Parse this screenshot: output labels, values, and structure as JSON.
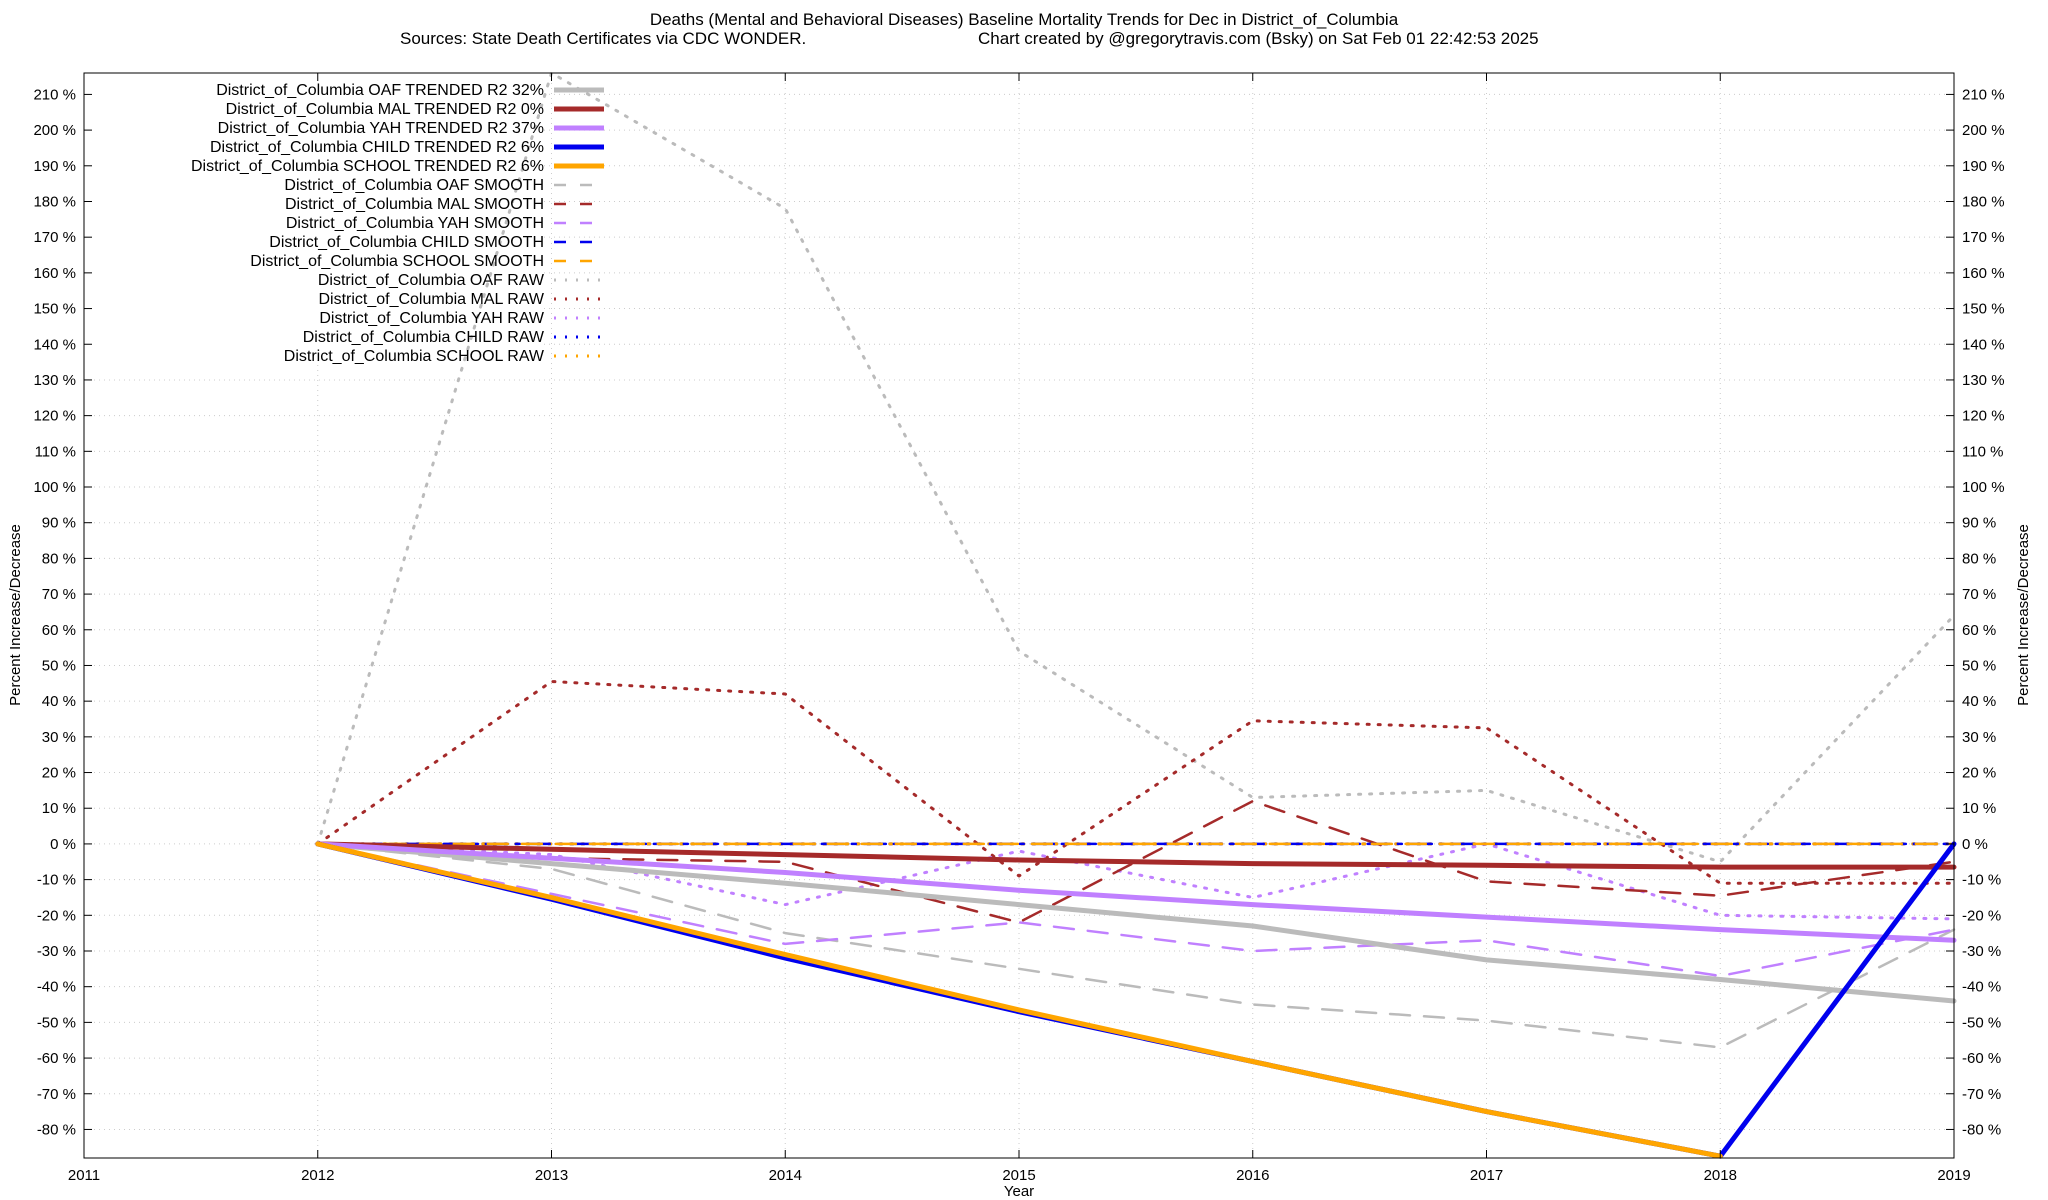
{
  "chart_data": {
    "type": "line",
    "title_line1": "Deaths (Mental and Behavioral Diseases)  Baseline Mortality Trends for Dec in District_of_Columbia",
    "title_line2_left": "Sources: State Death Certificates via CDC WONDER.",
    "title_line2_right": "Chart created by @gregorytravis.com (Bsky) on Sat Feb 01 22:42:53 2025",
    "xlabel": "Year",
    "ylabel": "Percent Increase/Decrease",
    "xlim": [
      2011,
      2019
    ],
    "ylim": [
      -88,
      216
    ],
    "x_ticks": [
      2011,
      2012,
      2013,
      2014,
      2015,
      2016,
      2017,
      2018,
      2019
    ],
    "x_tick_labels": [
      "2011",
      "2012",
      "2013",
      "2014",
      "2015",
      "2016",
      "2017",
      "2018",
      "2019"
    ],
    "y_ticks": [
      -80,
      -70,
      -60,
      -50,
      -40,
      -30,
      -20,
      -10,
      0,
      10,
      20,
      30,
      40,
      50,
      60,
      70,
      80,
      90,
      100,
      110,
      120,
      130,
      140,
      150,
      160,
      170,
      180,
      190,
      200,
      210
    ],
    "y_tick_labels": [
      "-80 %",
      "-70 %",
      "-60 %",
      "-50 %",
      "-40 %",
      "-30 %",
      "-20 %",
      "-10 %",
      "0 %",
      "10 %",
      "20 %",
      "30 %",
      "40 %",
      "50 %",
      "60 %",
      "70 %",
      "80 %",
      "90 %",
      "100 %",
      "110 %",
      "120 %",
      "130 %",
      "140 %",
      "150 %",
      "160 %",
      "170 %",
      "180 %",
      "190 %",
      "200 %",
      "210 %"
    ],
    "grid": true,
    "legend_position": "top-left",
    "series": [
      {
        "name": "District_of_Columbia OAF TRENDED R2  32%",
        "style": "trend",
        "color": "#bbbbbb",
        "x": [
          2012,
          2013,
          2014,
          2015,
          2016,
          2017,
          2018,
          2019
        ],
        "values": [
          0,
          -5.5,
          -11,
          -17,
          -23,
          -32.5,
          -38,
          -44
        ]
      },
      {
        "name": "District_of_Columbia MAL TRENDED R2   0%",
        "style": "trend",
        "color": "#a52a2a",
        "x": [
          2012,
          2013,
          2014,
          2015,
          2016,
          2017,
          2018,
          2019
        ],
        "values": [
          0,
          -1.5,
          -3,
          -4.5,
          -5.5,
          -6,
          -6.5,
          -6.5
        ]
      },
      {
        "name": "District_of_Columbia YAH TRENDED R2  37%",
        "style": "trend",
        "color": "#c080ff",
        "x": [
          2012,
          2013,
          2014,
          2015,
          2016,
          2017,
          2018,
          2019
        ],
        "values": [
          0,
          -4,
          -8,
          -13,
          -17,
          -20.5,
          -24,
          -27
        ]
      },
      {
        "name": "District_of_Columbia CHILD TRENDED R2   6%",
        "style": "trend",
        "color": "#0000ee",
        "x": [
          2012,
          2013,
          2014,
          2015,
          2016,
          2017,
          2018,
          2019
        ],
        "values": [
          0,
          -15.5,
          -32,
          -47,
          -61,
          -75,
          -87.5,
          0
        ]
      },
      {
        "name": "District_of_Columbia SCHOOL TRENDED R2   6%",
        "style": "trend",
        "color": "#ffa500",
        "x": [
          2012,
          2013,
          2014,
          2015,
          2016,
          2017,
          2018
        ],
        "values": [
          0,
          -15,
          -31,
          -46.5,
          -61,
          -75,
          -87.5
        ]
      },
      {
        "name": "District_of_Columbia OAF SMOOTH",
        "style": "smooth",
        "color": "#bbbbbb",
        "x": [
          2012,
          2013,
          2014,
          2015,
          2016,
          2017,
          2018,
          2019
        ],
        "values": [
          0,
          -7,
          -25,
          -35,
          -45,
          -49.5,
          -57,
          -24
        ]
      },
      {
        "name": "District_of_Columbia MAL SMOOTH",
        "style": "smooth",
        "color": "#a52a2a",
        "x": [
          2012,
          2013,
          2014,
          2015,
          2016,
          2017,
          2018,
          2019
        ],
        "values": [
          0,
          -4,
          -5,
          -22,
          12,
          -10.5,
          -14.5,
          -5
        ]
      },
      {
        "name": "District_of_Columbia YAH SMOOTH",
        "style": "smooth",
        "color": "#c080ff",
        "x": [
          2012,
          2013,
          2014,
          2015,
          2016,
          2017,
          2018,
          2019
        ],
        "values": [
          0,
          -14,
          -28,
          -22,
          -30,
          -27,
          -37,
          -24
        ]
      },
      {
        "name": "District_of_Columbia CHILD SMOOTH",
        "style": "smooth",
        "color": "#0000ee",
        "x": [
          2012,
          2013,
          2014,
          2015,
          2016,
          2017,
          2018,
          2019
        ],
        "values": [
          0,
          0,
          0,
          0,
          0,
          0,
          0,
          0
        ]
      },
      {
        "name": "District_of_Columbia SCHOOL SMOOTH",
        "style": "smooth",
        "color": "#ffa500",
        "x": [
          2012,
          2013,
          2014,
          2015,
          2016,
          2017,
          2018,
          2019
        ],
        "values": [
          0,
          0,
          0,
          0,
          0,
          0,
          0,
          0
        ]
      },
      {
        "name": "District_of_Columbia OAF RAW",
        "style": "raw",
        "color": "#bbbbbb",
        "x": [
          2012,
          2013,
          2014,
          2015,
          2016,
          2017,
          2018,
          2019
        ],
        "values": [
          0,
          216,
          178,
          54,
          13,
          15,
          -5,
          64
        ]
      },
      {
        "name": "District_of_Columbia MAL RAW",
        "style": "raw",
        "color": "#a52a2a",
        "x": [
          2012,
          2013,
          2014,
          2015,
          2016,
          2017,
          2018,
          2019
        ],
        "values": [
          0,
          45.5,
          42,
          -9,
          34.5,
          32.5,
          -11,
          -11
        ]
      },
      {
        "name": "District_of_Columbia YAH RAW",
        "style": "raw",
        "color": "#c080ff",
        "x": [
          2012,
          2013,
          2014,
          2015,
          2016,
          2017,
          2018,
          2019
        ],
        "values": [
          0,
          -3,
          -17,
          -2,
          -15,
          0,
          -20,
          -21
        ]
      },
      {
        "name": "District_of_Columbia CHILD RAW",
        "style": "raw",
        "color": "#0000ee",
        "x": [
          2012,
          2013,
          2014,
          2015,
          2016,
          2017,
          2018,
          2019
        ],
        "values": [
          0,
          0,
          0,
          0,
          0,
          0,
          0,
          0
        ]
      },
      {
        "name": "District_of_Columbia SCHOOL RAW",
        "style": "raw",
        "color": "#ffa500",
        "x": [
          2012,
          2013,
          2014,
          2015,
          2016,
          2017,
          2018,
          2019
        ],
        "values": [
          0,
          0,
          0,
          0,
          0,
          0,
          0,
          0
        ]
      }
    ]
  }
}
